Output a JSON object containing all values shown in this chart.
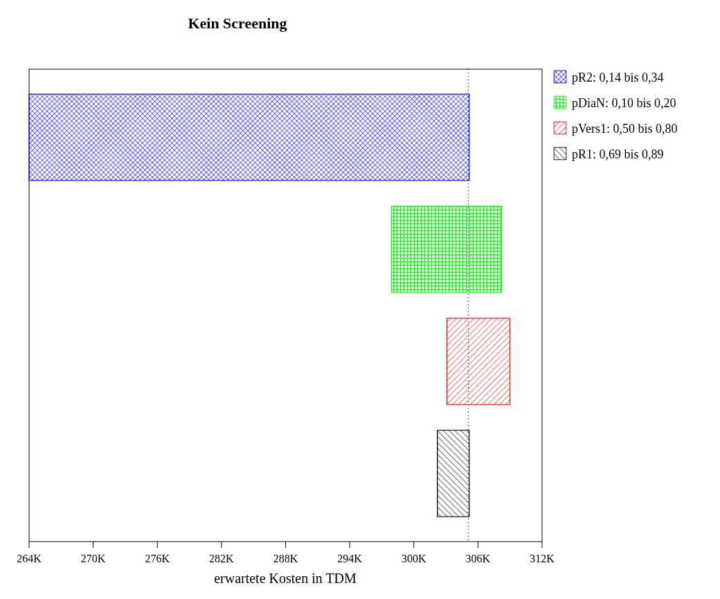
{
  "chart_data": {
    "type": "bar",
    "orientation": "horizontal",
    "title": "Kein Screening",
    "xlabel": "erwartete Kosten in TDM",
    "categories": [
      null,
      null,
      null,
      null
    ],
    "series": [
      {
        "name": "pR2: 0,14 bis 0,34",
        "color": "#0000ff",
        "values": [
          41.2,
          null,
          null,
          null
        ],
        "base": [
          264,
          null,
          null,
          null
        ]
      },
      {
        "name": "pDiaN: 0,10 bis 0,20",
        "color": "#00ff00",
        "values": [
          null,
          10.3,
          null,
          null
        ],
        "base": [
          null,
          297.9,
          null,
          null
        ]
      },
      {
        "name": "pVers1: 0,50 bis 0,80",
        "color": "#ff0000",
        "values": [
          null,
          null,
          5.9,
          null
        ],
        "base": [
          null,
          null,
          303.1,
          null
        ]
      },
      {
        "name": "pR1: 0,69 bis 0,89",
        "color": "#000000",
        "values": [
          null,
          null,
          null,
          3.0
        ],
        "base": [
          null,
          null,
          null,
          302.2
        ]
      }
    ],
    "xlim": [
      264,
      312
    ],
    "xticks": [
      {
        "value": 264,
        "label": "264K"
      },
      {
        "value": 270,
        "label": "270K"
      },
      {
        "value": 276,
        "label": "276K"
      },
      {
        "value": 282,
        "label": "282K"
      },
      {
        "value": 288,
        "label": "288K"
      },
      {
        "value": 294,
        "label": "294K"
      },
      {
        "value": 300,
        "label": "300K"
      },
      {
        "value": 306,
        "label": "306K"
      },
      {
        "value": 312,
        "label": "312K"
      }
    ],
    "ref_lines": [
      {
        "axis": "x",
        "value": 305.1,
        "color": "#000000",
        "line_style": "dotted"
      }
    ],
    "grid": false,
    "legend": "top right"
  }
}
